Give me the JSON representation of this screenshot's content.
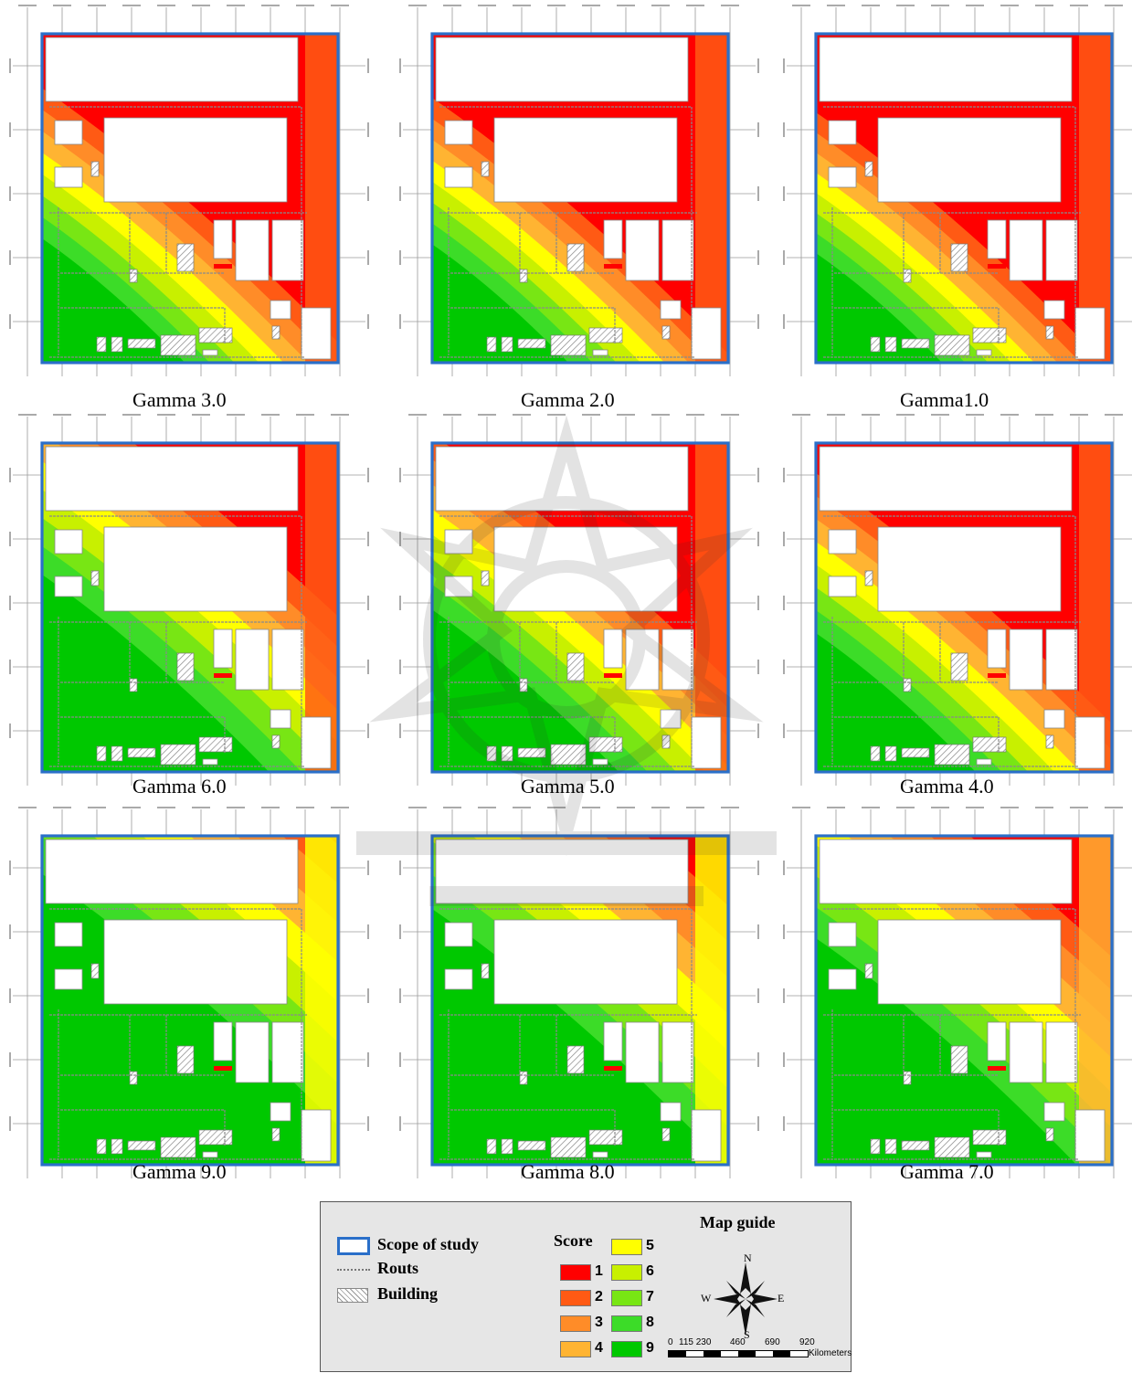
{
  "panels": [
    {
      "caption": "Gamma 3.0",
      "level": 0.05
    },
    {
      "caption": "Gamma 2.0",
      "level": 0.03
    },
    {
      "caption": "Gamma1.0",
      "level": 0.0
    },
    {
      "caption": "Gamma 6.0",
      "level": 0.3
    },
    {
      "caption": "Gamma 5.0",
      "level": 0.18
    },
    {
      "caption": "Gamma 4.0",
      "level": 0.1
    },
    {
      "caption": "Gamma 9.0",
      "level": 0.62
    },
    {
      "caption": "Gamma 8.0",
      "level": 0.5
    },
    {
      "caption": "Gamma 7.0",
      "level": 0.4
    }
  ],
  "score_colors": [
    "#ff0000",
    "#ff5a14",
    "#ff8c28",
    "#ffb432",
    "#ffff00",
    "#c8f000",
    "#78e614",
    "#3cdc28",
    "#00c800"
  ],
  "legend": {
    "title": "Map guide",
    "scope_label": "Scope of study",
    "routs_label": "Routs",
    "building_label": "Building",
    "score_label": "Score",
    "scores": [
      "1",
      "2",
      "3",
      "4",
      "5",
      "6",
      "7",
      "8",
      "9"
    ],
    "compass": {
      "n": "N",
      "s": "S",
      "e": "E",
      "w": "W"
    },
    "scale_ticks": [
      "0",
      "115 230",
      "460",
      "690",
      "920"
    ],
    "scale_unit": "Kilometers"
  },
  "colors": {
    "scope": "#2a6fc9",
    "route": "#888888",
    "building": "#ffffff"
  }
}
